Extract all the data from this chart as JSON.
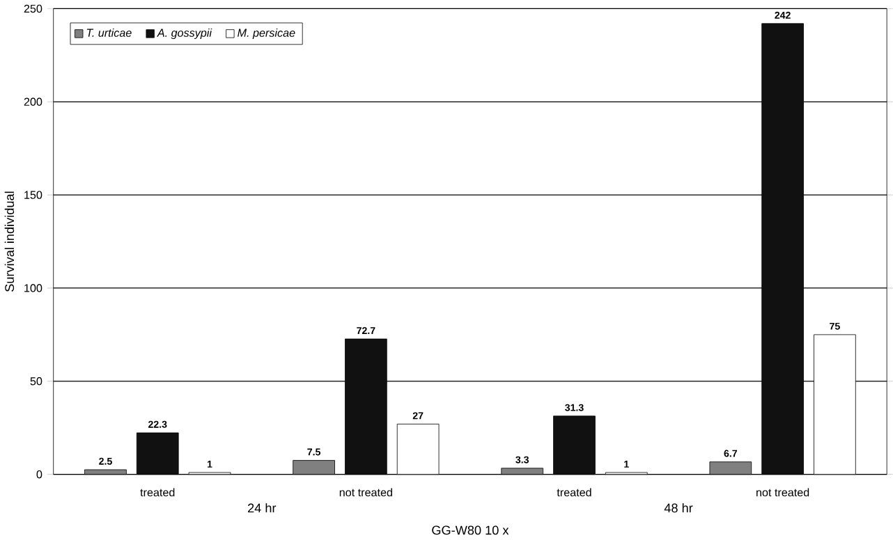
{
  "chart_data": {
    "type": "bar",
    "xlabel": "GG-W80 10 x",
    "ylabel": "Survival individual",
    "categories": [
      "treated",
      "not treated",
      "treated",
      "not treated"
    ],
    "series": [
      {
        "name": "T. urticae",
        "color": "#808080",
        "values": [
          2.5,
          7.5,
          3.3,
          6.7
        ]
      },
      {
        "name": "A. gossypii",
        "color": "#111111",
        "values": [
          22.3,
          72.7,
          31.3,
          242
        ]
      },
      {
        "name": "M. persicae",
        "color": "#ffffff",
        "values": [
          1,
          27,
          1,
          75
        ]
      }
    ],
    "annotations": [
      "24 hr",
      "48 hr"
    ],
    "ylim": [
      0,
      250
    ],
    "yticks": [
      0,
      50,
      100,
      150,
      200,
      250
    ],
    "grid": "y",
    "legend": "top left",
    "data_labels": true
  }
}
